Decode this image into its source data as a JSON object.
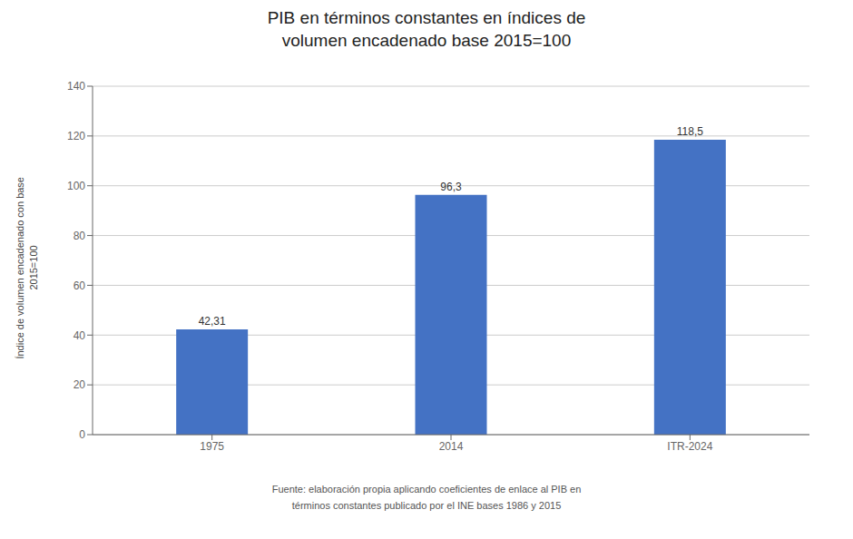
{
  "chart_data": {
    "type": "bar",
    "title": "PIB en términos constantes en índices de\nvolumen encadenado base 2015=100",
    "categories": [
      "1975",
      "2014",
      "ITR-2024"
    ],
    "values": [
      42.31,
      96.3,
      118.5
    ],
    "value_labels": [
      "42,31",
      "96,3",
      "118,5"
    ],
    "data_labels": true,
    "color": "#4472C4",
    "ylabel": "Índice de volumen encadenado con base\n2015=100",
    "ylim": [
      0,
      140
    ],
    "yticks": [
      0,
      20,
      40,
      60,
      80,
      100,
      120,
      140
    ],
    "grid": true,
    "annotations": [
      "Fuente: elaboración propia aplicando coeficientes de enlace al PIB en\ntérminos constantes publicado por el INE bases 1986 y 2015"
    ]
  }
}
